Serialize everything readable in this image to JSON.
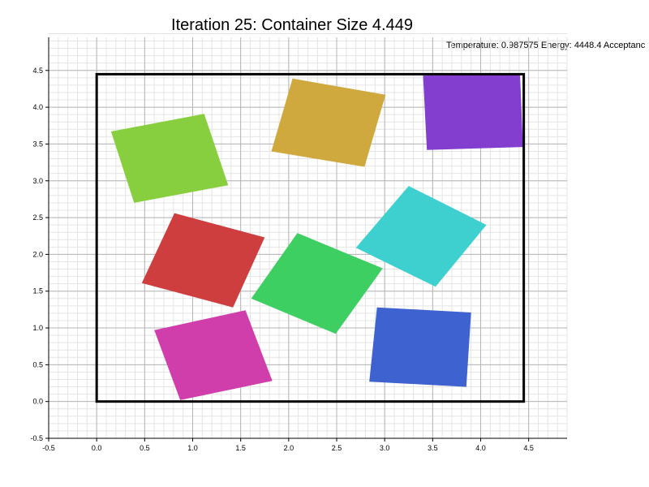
{
  "title": "Iteration 25: Container Size 4.449",
  "status": {
    "temperature_label": "Temperature:",
    "temperature": "0.987575",
    "energy_label": "Energy:",
    "energy": "4448.4",
    "acceptance_label": "Acceptanc"
  },
  "chart_data": {
    "type": "polygon",
    "title": "Iteration 25: Container Size 4.449",
    "xlabel": "",
    "ylabel": "",
    "xlim": [
      -0.5,
      4.9
    ],
    "ylim": [
      -0.5,
      4.95
    ],
    "grid": true,
    "minor_grid_step": 0.1,
    "x_ticks": [
      -0.5,
      0.0,
      0.5,
      1.0,
      1.5,
      2.0,
      2.5,
      3.0,
      3.5,
      4.0,
      4.5
    ],
    "x_tick_labels": [
      "-0.5",
      "0.0",
      "0.5",
      "1.0",
      "1.5",
      "2.0",
      "2.5",
      "3.0",
      "3.5",
      "4.0",
      "4.5"
    ],
    "y_ticks": [
      -0.5,
      0.0,
      0.5,
      1.0,
      1.5,
      2.0,
      2.5,
      3.0,
      3.5,
      4.0,
      4.5
    ],
    "y_tick_labels": [
      "-0.5",
      "0.0",
      "0.5",
      "1.0",
      "1.5",
      "2.0",
      "2.5",
      "3.0",
      "3.5",
      "4.0",
      "4.5"
    ],
    "container": {
      "x0": 0.0,
      "y0": 0.0,
      "x1": 4.449,
      "y1": 4.449,
      "color": "#000000"
    },
    "shapes": [
      {
        "color": "#87cf3e",
        "points": [
          [
            0.15,
            3.67
          ],
          [
            1.12,
            3.91
          ],
          [
            1.37,
            2.94
          ],
          [
            0.39,
            2.7
          ]
        ]
      },
      {
        "color": "#cfa83e",
        "points": [
          [
            2.04,
            4.39
          ],
          [
            3.01,
            4.17
          ],
          [
            2.79,
            3.19
          ],
          [
            1.82,
            3.4
          ]
        ]
      },
      {
        "color": "#833ecf",
        "points": [
          [
            3.4,
            4.43
          ],
          [
            4.41,
            4.45
          ],
          [
            4.44,
            3.46
          ],
          [
            3.44,
            3.42
          ]
        ]
      },
      {
        "color": "#cf3e3e",
        "points": [
          [
            0.81,
            2.56
          ],
          [
            1.75,
            2.23
          ],
          [
            1.42,
            1.28
          ],
          [
            0.47,
            1.61
          ]
        ]
      },
      {
        "color": "#3ecfcf",
        "points": [
          [
            3.25,
            2.93
          ],
          [
            4.06,
            2.4
          ],
          [
            3.53,
            1.56
          ],
          [
            2.7,
            2.09
          ]
        ]
      },
      {
        "color": "#3ecf62",
        "points": [
          [
            2.09,
            2.29
          ],
          [
            2.98,
            1.81
          ],
          [
            2.49,
            0.92
          ],
          [
            1.61,
            1.4
          ]
        ]
      },
      {
        "color": "#3e62cf",
        "points": [
          [
            2.92,
            1.28
          ],
          [
            3.9,
            1.21
          ],
          [
            3.85,
            0.2
          ],
          [
            2.84,
            0.27
          ]
        ]
      },
      {
        "color": "#cf3eaa",
        "points": [
          [
            0.6,
            0.97
          ],
          [
            1.55,
            1.24
          ],
          [
            1.83,
            0.28
          ],
          [
            0.87,
            0.02
          ]
        ]
      }
    ]
  }
}
